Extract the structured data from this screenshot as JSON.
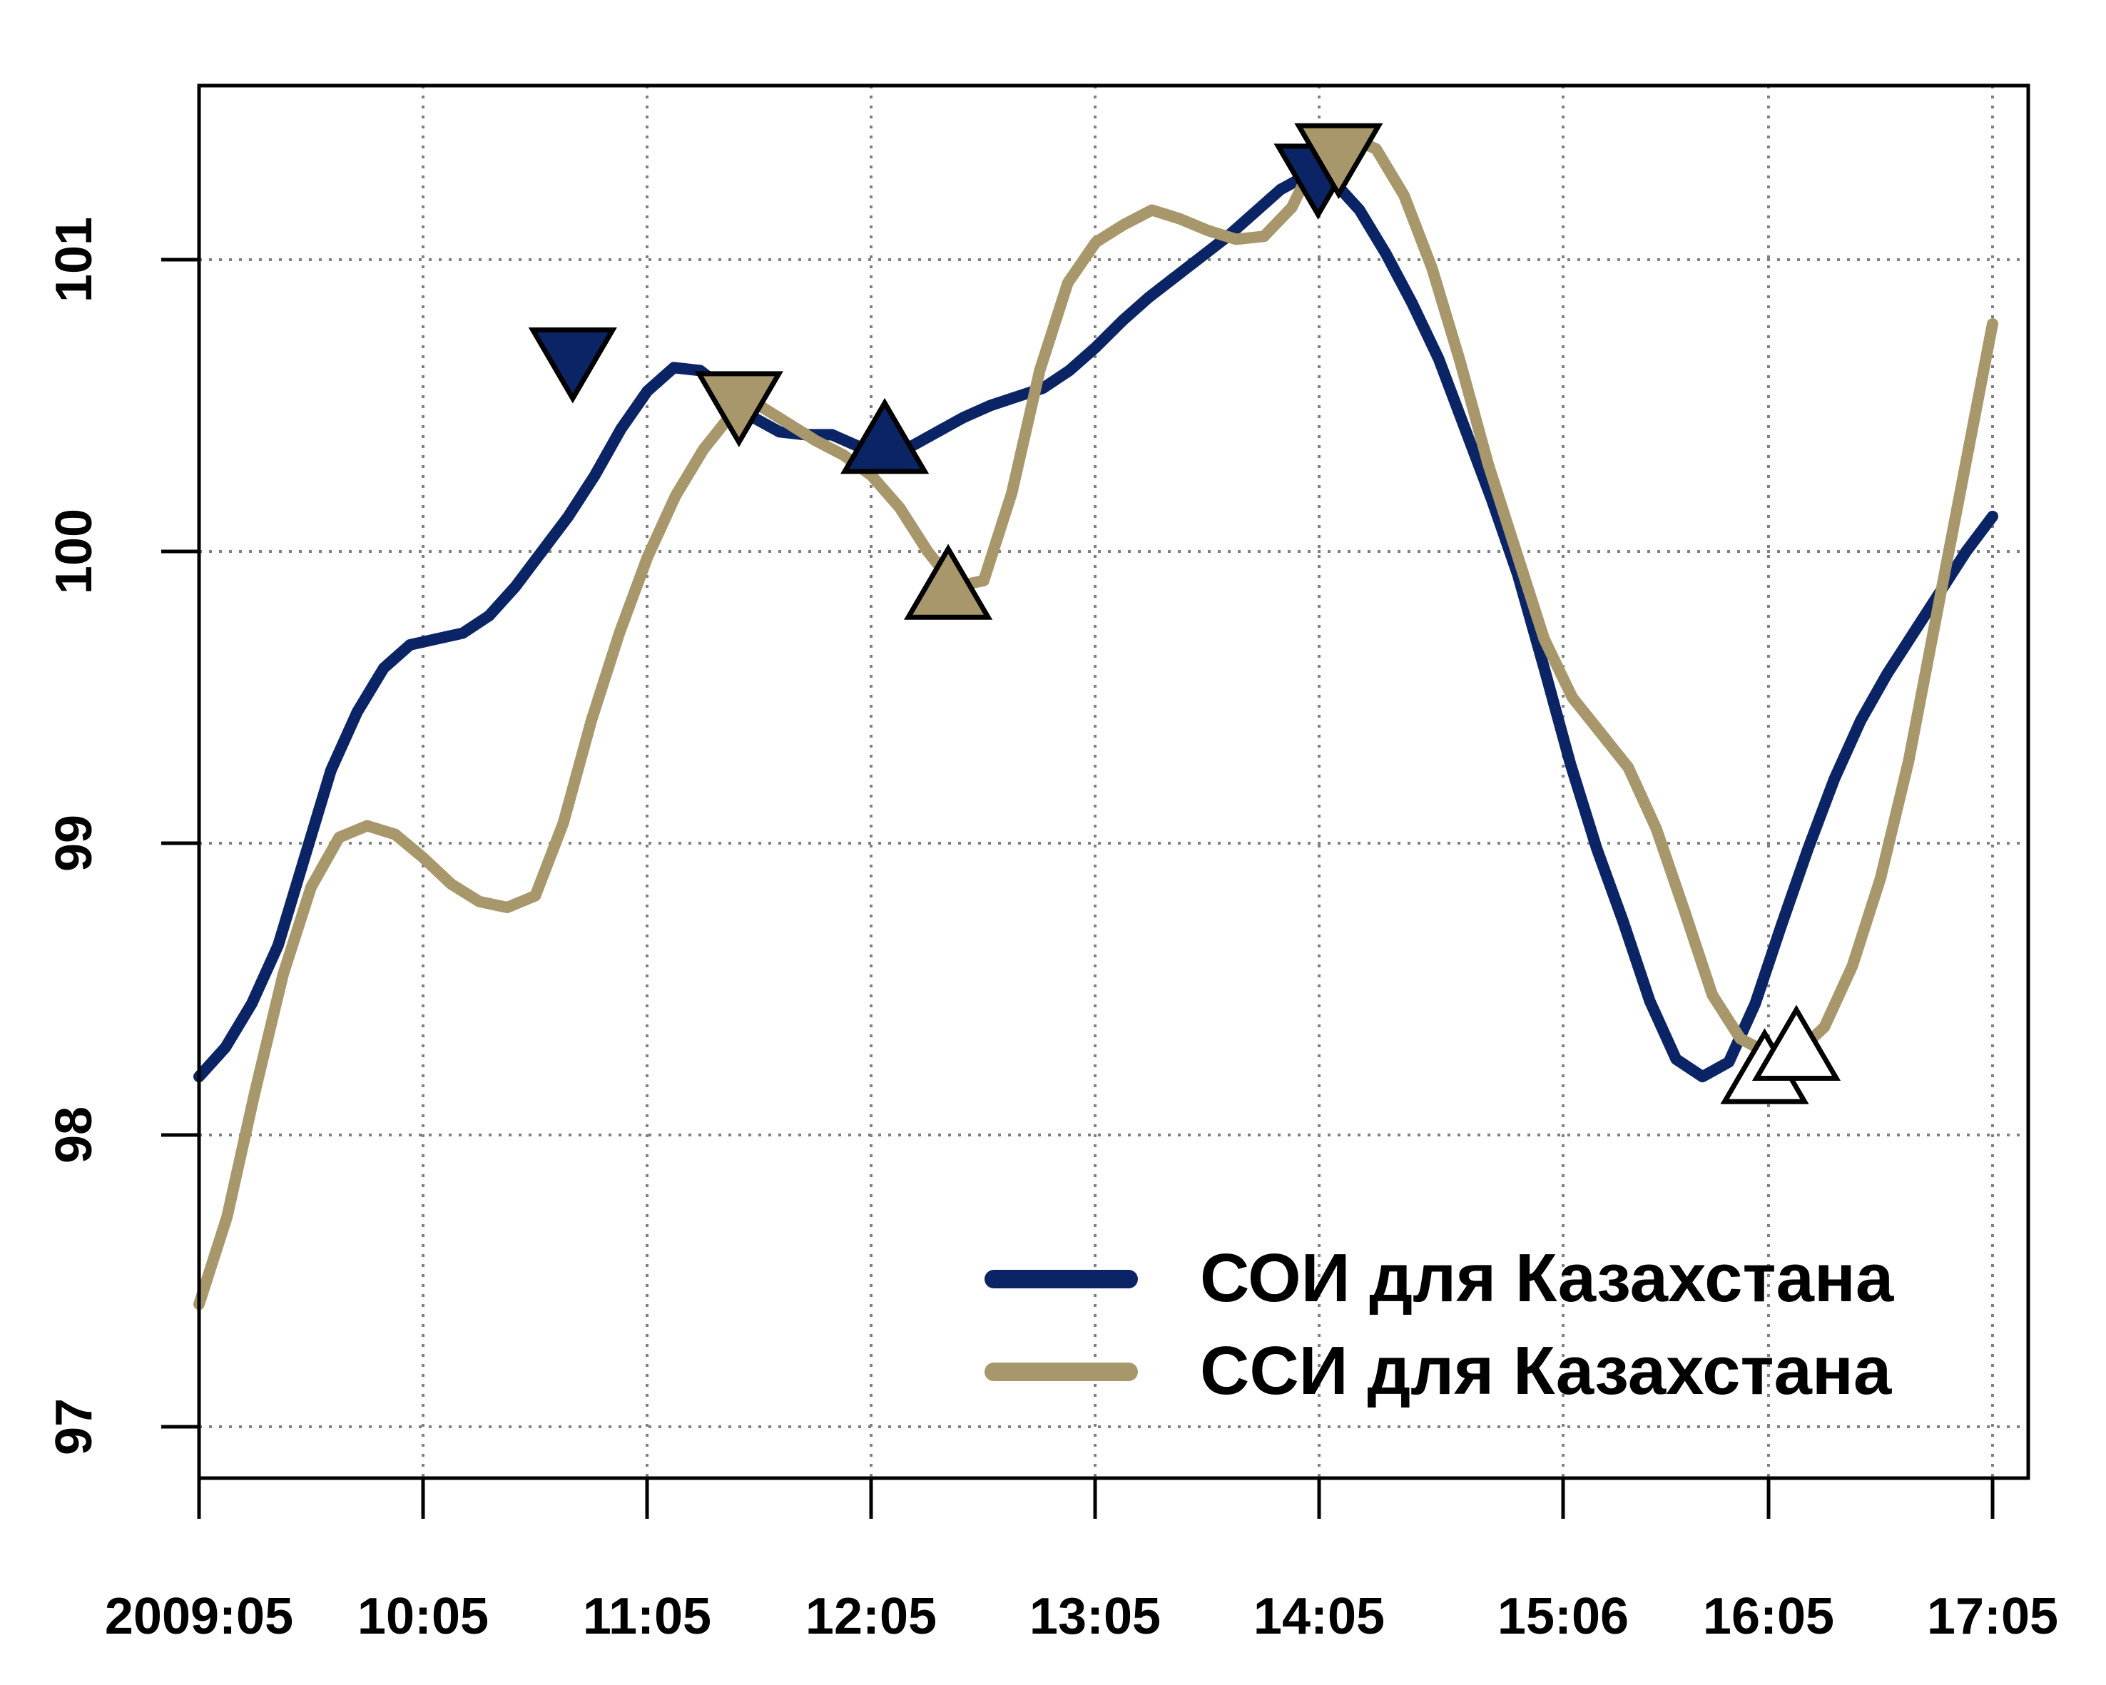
{
  "chart_data": {
    "type": "line",
    "title": "",
    "xlabel": "",
    "ylabel": "",
    "xlim": [
      0,
      96
    ],
    "ylim": [
      96.85,
      101.6
    ],
    "x_ticks": [
      {
        "x": 0,
        "label": "2009:05"
      },
      {
        "x": 12,
        "label": "10:05"
      },
      {
        "x": 24,
        "label": "11:05"
      },
      {
        "x": 36,
        "label": "12:05"
      },
      {
        "x": 48,
        "label": "13:05"
      },
      {
        "x": 60,
        "label": "14:05"
      },
      {
        "x": 73,
        "label": "15:06"
      },
      {
        "x": 84,
        "label": "16:05"
      },
      {
        "x": 96,
        "label": "17:05"
      }
    ],
    "y_ticks": [
      97,
      98,
      99,
      100,
      101
    ],
    "grid": true,
    "legend_position": "bottom-right",
    "series": [
      {
        "name": "СОИ для Казахстана",
        "color": "#0b2466",
        "points": [
          [
            0,
            98.2
          ],
          [
            1,
            98.3
          ],
          [
            2,
            98.45
          ],
          [
            3,
            98.65
          ],
          [
            4,
            98.95
          ],
          [
            5,
            99.25
          ],
          [
            6,
            99.45
          ],
          [
            7,
            99.6
          ],
          [
            8,
            99.68
          ],
          [
            9,
            99.7
          ],
          [
            10,
            99.72
          ],
          [
            11,
            99.78
          ],
          [
            12,
            99.88
          ],
          [
            13,
            100.0
          ],
          [
            14,
            100.12
          ],
          [
            15,
            100.26
          ],
          [
            16,
            100.42
          ],
          [
            17,
            100.55
          ],
          [
            18,
            100.63
          ],
          [
            19,
            100.62
          ],
          [
            20,
            100.55
          ],
          [
            21,
            100.46
          ],
          [
            22,
            100.41
          ],
          [
            23,
            100.4
          ],
          [
            24,
            100.4
          ],
          [
            25,
            100.36
          ],
          [
            26,
            100.34
          ],
          [
            27,
            100.36
          ],
          [
            28,
            100.41
          ],
          [
            29,
            100.46
          ],
          [
            30,
            100.5
          ],
          [
            31,
            100.53
          ],
          [
            32,
            100.56
          ],
          [
            33,
            100.62
          ],
          [
            34,
            100.7
          ],
          [
            35,
            100.79
          ],
          [
            36,
            100.87
          ],
          [
            37,
            100.94
          ],
          [
            38,
            101.01
          ],
          [
            39,
            101.08
          ],
          [
            40,
            101.16
          ],
          [
            41,
            101.24
          ],
          [
            42,
            101.29
          ],
          [
            43,
            101.27
          ],
          [
            44,
            101.17
          ],
          [
            45,
            101.02
          ],
          [
            46,
            100.85
          ],
          [
            47,
            100.66
          ],
          [
            48,
            100.42
          ],
          [
            49,
            100.18
          ],
          [
            50,
            99.92
          ],
          [
            51,
            99.6
          ],
          [
            52,
            99.27
          ],
          [
            53,
            98.98
          ],
          [
            54,
            98.73
          ],
          [
            55,
            98.46
          ],
          [
            56,
            98.26
          ],
          [
            57,
            98.2
          ],
          [
            58,
            98.25
          ],
          [
            59,
            98.45
          ],
          [
            60,
            98.72
          ],
          [
            61,
            98.98
          ],
          [
            62,
            99.22
          ],
          [
            63,
            99.42
          ],
          [
            64,
            99.58
          ],
          [
            65,
            99.72
          ],
          [
            66,
            99.86
          ],
          [
            67,
            100.0
          ],
          [
            68,
            100.12
          ]
        ],
        "x_scale_note": "series points are on an index grid; see x_ticks"
      },
      {
        "name": "ССИ для Казахстана",
        "color": "#a8976a",
        "points": [
          [
            0,
            97.42
          ],
          [
            1,
            97.72
          ],
          [
            2,
            98.15
          ],
          [
            3,
            98.55
          ],
          [
            4,
            98.85
          ],
          [
            5,
            99.02
          ],
          [
            6,
            99.06
          ],
          [
            7,
            99.03
          ],
          [
            8,
            98.95
          ],
          [
            9,
            98.86
          ],
          [
            10,
            98.8
          ],
          [
            11,
            98.78
          ],
          [
            12,
            98.82
          ],
          [
            13,
            99.07
          ],
          [
            14,
            99.42
          ],
          [
            15,
            99.72
          ],
          [
            16,
            99.98
          ],
          [
            17,
            100.19
          ],
          [
            18,
            100.35
          ],
          [
            19,
            100.47
          ],
          [
            20,
            100.5
          ],
          [
            21,
            100.44
          ],
          [
            22,
            100.38
          ],
          [
            23,
            100.33
          ],
          [
            24,
            100.26
          ],
          [
            25,
            100.15
          ],
          [
            26,
            100.0
          ],
          [
            27,
            99.88
          ],
          [
            28,
            99.9
          ],
          [
            29,
            100.2
          ],
          [
            30,
            100.62
          ],
          [
            31,
            100.92
          ],
          [
            32,
            101.06
          ],
          [
            33,
            101.12
          ],
          [
            34,
            101.17
          ],
          [
            35,
            101.14
          ],
          [
            36,
            101.1
          ],
          [
            37,
            101.07
          ],
          [
            38,
            101.08
          ],
          [
            39,
            101.18
          ],
          [
            40,
            101.38
          ],
          [
            41,
            101.42
          ],
          [
            42,
            101.38
          ],
          [
            43,
            101.22
          ],
          [
            44,
            100.97
          ],
          [
            45,
            100.65
          ],
          [
            46,
            100.3
          ],
          [
            47,
            100.0
          ],
          [
            48,
            99.7
          ],
          [
            49,
            99.5
          ],
          [
            50,
            99.38
          ],
          [
            51,
            99.26
          ],
          [
            52,
            99.05
          ],
          [
            53,
            98.77
          ],
          [
            54,
            98.48
          ],
          [
            55,
            98.33
          ],
          [
            56,
            98.28
          ],
          [
            57,
            98.28
          ],
          [
            58,
            98.37
          ],
          [
            59,
            98.58
          ],
          [
            60,
            98.88
          ],
          [
            61,
            99.28
          ],
          [
            62,
            99.78
          ],
          [
            63,
            100.28
          ],
          [
            64,
            100.78
          ]
        ]
      }
    ],
    "markers": [
      {
        "series": "СОИ для Казахстана",
        "shape": "triangle-down",
        "x": 20.0,
        "y": 100.63,
        "fill": "#0b2466"
      },
      {
        "series": "СОИ для Казахстана",
        "shape": "triangle-up",
        "x": 36.7,
        "y": 100.38,
        "fill": "#0b2466"
      },
      {
        "series": "СОИ для Казахстана",
        "shape": "triangle-down",
        "x": 59.9,
        "y": 101.26,
        "fill": "#0b2466"
      },
      {
        "series": "СОИ для Казахстана",
        "shape": "triangle-up",
        "x": 83.8,
        "y": 98.22,
        "fill": "#ffffff"
      },
      {
        "series": "ССИ для Казахстана",
        "shape": "triangle-down",
        "x": 28.9,
        "y": 100.48,
        "fill": "#a8976a"
      },
      {
        "series": "ССИ для Казахстана",
        "shape": "triangle-up",
        "x": 40.1,
        "y": 99.88,
        "fill": "#a8976a"
      },
      {
        "series": "ССИ для Казахстана",
        "shape": "triangle-down",
        "x": 61.0,
        "y": 101.33,
        "fill": "#a8976a"
      },
      {
        "series": "ССИ для Казахстана",
        "shape": "triangle-up",
        "x": 85.5,
        "y": 98.3,
        "fill": "#ffffff"
      }
    ]
  }
}
